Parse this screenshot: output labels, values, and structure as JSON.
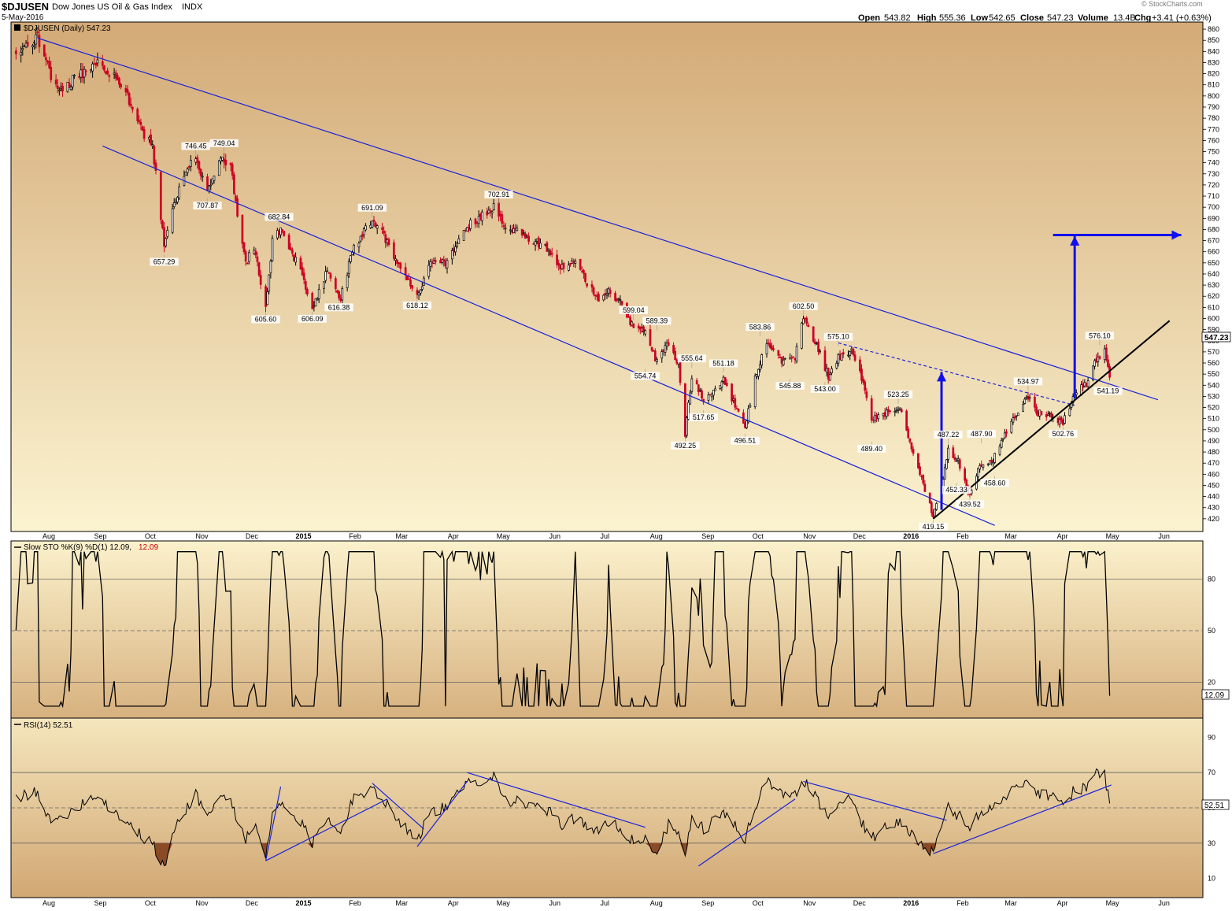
{
  "header": {
    "symbol": "$DJUSEN",
    "name": "Dow Jones US Oil & Gas Index",
    "exchange": "INDX",
    "date": "5-May-2016",
    "open_label": "Open",
    "open": "543.82",
    "high_label": "High",
    "high": "555.36",
    "low_label": "Low",
    "low": "542.65",
    "close_label": "Close",
    "close": "547.23",
    "volume_label": "Volume",
    "volume": "13.4B",
    "chg_label": "Chg",
    "chg": "+3.41 (+0.63%)",
    "brand": "© StockCharts.com",
    "arrow": "▲"
  },
  "colors": {
    "bg_top": "#d3aa77",
    "bg_bottom": "#fbf3d0",
    "down": "#cc0022",
    "up": "#000000",
    "trend_blue": "#1a22d8",
    "arrow_blue": "#1010ee",
    "rsi_fill": "#8a4a26"
  },
  "months_x": [
    "Aug",
    "Sep",
    "Oct",
    "Nov",
    "Dec",
    "2015",
    "Feb",
    "Mar",
    "Apr",
    "May",
    "Jun",
    "Jul",
    "Aug",
    "Sep",
    "Oct",
    "Nov",
    "Dec",
    "2016",
    "Feb",
    "Mar",
    "Apr",
    "May",
    "Jun"
  ],
  "chart_data": [
    {
      "type": "candlestick",
      "title": "$DJUSEN (Daily) 547.23",
      "last_value": "547.23",
      "ylim": [
        410,
        865
      ],
      "yticks": [
        420,
        430,
        440,
        450,
        460,
        470,
        480,
        490,
        500,
        510,
        520,
        530,
        540,
        550,
        560,
        570,
        580,
        590,
        600,
        610,
        620,
        630,
        640,
        650,
        660,
        670,
        680,
        690,
        700,
        710,
        720,
        730,
        740,
        750,
        760,
        770,
        780,
        790,
        800,
        810,
        820,
        830,
        840,
        850,
        860
      ],
      "anchors": [
        [
          "2014-07-18",
          838
        ],
        [
          "2014-07-31",
          852
        ],
        [
          "2014-08-08",
          818
        ],
        [
          "2014-08-14",
          806
        ],
        [
          "2014-08-29",
          823
        ],
        [
          "2014-09-05",
          832
        ],
        [
          "2014-09-12",
          822
        ],
        [
          "2014-09-23",
          800
        ],
        [
          "2014-10-01",
          770
        ],
        [
          "2014-10-08",
          755
        ],
        [
          "2014-10-15",
          668
        ],
        [
          "2014-10-20",
          700
        ],
        [
          "2014-10-27",
          725
        ],
        [
          "2014-11-03",
          748
        ],
        [
          "2014-11-10",
          712
        ],
        [
          "2014-11-17",
          742
        ],
        [
          "2014-11-24",
          738
        ],
        [
          "2014-11-28",
          690
        ],
        [
          "2014-12-03",
          650
        ],
        [
          "2014-12-08",
          665
        ],
        [
          "2014-12-15",
          607
        ],
        [
          "2014-12-19",
          670
        ],
        [
          "2014-12-24",
          680
        ],
        [
          "2015-01-06",
          640
        ],
        [
          "2015-01-12",
          608
        ],
        [
          "2015-01-21",
          645
        ],
        [
          "2015-01-29",
          618
        ],
        [
          "2015-02-06",
          665
        ],
        [
          "2015-02-17",
          688
        ],
        [
          "2015-02-26",
          670
        ],
        [
          "2015-03-06",
          645
        ],
        [
          "2015-03-16",
          620
        ],
        [
          "2015-03-24",
          648
        ],
        [
          "2015-04-03",
          650
        ],
        [
          "2015-04-15",
          682
        ],
        [
          "2015-04-24",
          693
        ],
        [
          "2015-05-01",
          700
        ],
        [
          "2015-05-08",
          682
        ],
        [
          "2015-05-20",
          675
        ],
        [
          "2015-06-03",
          662
        ],
        [
          "2015-06-10",
          645
        ],
        [
          "2015-06-19",
          650
        ],
        [
          "2015-07-02",
          618
        ],
        [
          "2015-07-10",
          625
        ],
        [
          "2015-07-17",
          612
        ],
        [
          "2015-07-24",
          592
        ],
        [
          "2015-07-31",
          590
        ],
        [
          "2015-08-07",
          560
        ],
        [
          "2015-08-14",
          578
        ],
        [
          "2015-08-20",
          560
        ],
        [
          "2015-08-24",
          495
        ],
        [
          "2015-08-28",
          548
        ],
        [
          "2015-09-04",
          528
        ],
        [
          "2015-09-10",
          535
        ],
        [
          "2015-09-16",
          545
        ],
        [
          "2015-09-22",
          525
        ],
        [
          "2015-09-29",
          500
        ],
        [
          "2015-10-05",
          548
        ],
        [
          "2015-10-12",
          578
        ],
        [
          "2015-10-20",
          562
        ],
        [
          "2015-10-29",
          565
        ],
        [
          "2015-11-03",
          600
        ],
        [
          "2015-11-10",
          580
        ],
        [
          "2015-11-18",
          548
        ],
        [
          "2015-11-24",
          565
        ],
        [
          "2015-12-03",
          570
        ],
        [
          "2015-12-09",
          540
        ],
        [
          "2015-12-14",
          510
        ],
        [
          "2015-12-22",
          515
        ],
        [
          "2015-12-31",
          520
        ],
        [
          "2016-01-08",
          478
        ],
        [
          "2016-01-14",
          452
        ],
        [
          "2016-01-20",
          422
        ],
        [
          "2016-01-25",
          450
        ],
        [
          "2016-01-29",
          482
        ],
        [
          "2016-02-04",
          472
        ],
        [
          "2016-02-11",
          440
        ],
        [
          "2016-02-17",
          468
        ],
        [
          "2016-02-24",
          470
        ],
        [
          "2016-03-01",
          488
        ],
        [
          "2016-03-08",
          510
        ],
        [
          "2016-03-17",
          530
        ],
        [
          "2016-03-23",
          515
        ],
        [
          "2016-04-01",
          512
        ],
        [
          "2016-04-07",
          506
        ],
        [
          "2016-04-14",
          532
        ],
        [
          "2016-04-21",
          542
        ],
        [
          "2016-04-27",
          563
        ],
        [
          "2016-05-02",
          570
        ],
        [
          "2016-05-05",
          547.23
        ]
      ],
      "annotations": [
        {
          "date": "2014-10-15",
          "value": "657.29",
          "pos": "below"
        },
        {
          "date": "2014-11-03",
          "value": "746.45",
          "pos": "above"
        },
        {
          "date": "2014-11-10",
          "value": "707.87",
          "pos": "below"
        },
        {
          "date": "2014-11-20",
          "value": "749.04",
          "pos": "above"
        },
        {
          "date": "2014-12-15",
          "value": "605.60",
          "pos": "below"
        },
        {
          "date": "2014-12-23",
          "value": "682.84",
          "pos": "above"
        },
        {
          "date": "2015-01-12",
          "value": "606.09",
          "pos": "below"
        },
        {
          "date": "2015-01-28",
          "value": "616.38",
          "pos": "below"
        },
        {
          "date": "2015-02-17",
          "value": "691.09",
          "pos": "above"
        },
        {
          "date": "2015-03-16",
          "value": "618.12",
          "pos": "below"
        },
        {
          "date": "2015-05-04",
          "value": "702.91",
          "pos": "above"
        },
        {
          "date": "2015-07-24",
          "value": "599.04",
          "pos": "above"
        },
        {
          "date": "2015-07-31",
          "value": "554.74",
          "pos": "below"
        },
        {
          "date": "2015-08-07",
          "value": "589.39",
          "pos": "above"
        },
        {
          "date": "2015-08-24",
          "value": "492.25",
          "pos": "below"
        },
        {
          "date": "2015-08-28",
          "value": "555.64",
          "pos": "above"
        },
        {
          "date": "2015-09-04",
          "value": "517.65",
          "pos": "below"
        },
        {
          "date": "2015-09-16",
          "value": "551.18",
          "pos": "above"
        },
        {
          "date": "2015-09-29",
          "value": "496.51",
          "pos": "below"
        },
        {
          "date": "2015-10-08",
          "value": "583.86",
          "pos": "above"
        },
        {
          "date": "2015-10-26",
          "value": "545.88",
          "pos": "below"
        },
        {
          "date": "2015-11-03",
          "value": "602.50",
          "pos": "above"
        },
        {
          "date": "2015-11-16",
          "value": "543.00",
          "pos": "below"
        },
        {
          "date": "2015-11-24",
          "value": "575.10",
          "pos": "above"
        },
        {
          "date": "2015-12-14",
          "value": "489.40",
          "pos": "below"
        },
        {
          "date": "2015-12-30",
          "value": "523.25",
          "pos": "above"
        },
        {
          "date": "2016-01-20",
          "value": "419.15",
          "pos": "below"
        },
        {
          "date": "2016-01-29",
          "value": "487.22",
          "pos": "above"
        },
        {
          "date": "2016-02-03",
          "value": "452.33",
          "pos": "below"
        },
        {
          "date": "2016-02-11",
          "value": "439.52",
          "pos": "below"
        },
        {
          "date": "2016-02-18",
          "value": "487.90",
          "pos": "above"
        },
        {
          "date": "2016-02-26",
          "value": "458.60",
          "pos": "below"
        },
        {
          "date": "2016-03-17",
          "value": "534.97",
          "pos": "above"
        },
        {
          "date": "2016-04-07",
          "value": "502.76",
          "pos": "below"
        },
        {
          "date": "2016-04-29",
          "value": "576.10",
          "pos": "above"
        },
        {
          "date": "2016-05-04",
          "value": "541.19",
          "pos": "below"
        }
      ],
      "trendlines": [
        {
          "from": [
            "2014-07-31",
            852
          ],
          "to": [
            "2016-06-03",
            527
          ],
          "color": "blue"
        },
        {
          "from": [
            "2014-09-08",
            755
          ],
          "to": [
            "2016-02-26",
            414
          ],
          "color": "blue"
        },
        {
          "from": [
            "2015-11-24",
            578
          ],
          "to": [
            "2016-04-14",
            522
          ],
          "color": "blue",
          "dash": true
        },
        {
          "from": [
            "2016-01-20",
            420
          ],
          "to": [
            "2016-06-10",
            598
          ],
          "color": "black"
        },
        {
          "from": [
            "2016-01-25",
            428
          ],
          "to": [
            "2016-01-25",
            552
          ],
          "color": "arrow"
        },
        {
          "from": [
            "2016-04-14",
            528
          ],
          "to": [
            "2016-04-14",
            674
          ],
          "color": "arrow"
        },
        {
          "from": [
            "2016-04-01",
            675
          ],
          "to": [
            "2016-06-17",
            675
          ],
          "color": "arrow"
        }
      ]
    },
    {
      "type": "line",
      "title": "Slow STO %K(9) %D(1) 12.09,",
      "d_value": "12.09",
      "last_value": "12.09",
      "ylim": [
        0,
        100
      ],
      "yticks": [
        20,
        50,
        80
      ],
      "reference_lines": [
        20,
        50,
        80
      ]
    },
    {
      "type": "line",
      "title": "RSI(14) 52.51",
      "last_value": "52.51",
      "ylim": [
        0,
        100
      ],
      "yticks": [
        10,
        30,
        50,
        70,
        90
      ],
      "reference_lines": [
        30,
        50,
        70
      ],
      "anchors": [
        [
          "2014-07-18",
          55
        ],
        [
          "2014-07-31",
          60
        ],
        [
          "2014-08-08",
          40
        ],
        [
          "2014-08-14",
          45
        ],
        [
          "2014-08-29",
          54
        ],
        [
          "2014-09-05",
          58
        ],
        [
          "2014-09-12",
          50
        ],
        [
          "2014-09-23",
          42
        ],
        [
          "2014-10-01",
          34
        ],
        [
          "2014-10-08",
          30
        ],
        [
          "2014-10-15",
          15
        ],
        [
          "2014-10-20",
          35
        ],
        [
          "2014-10-27",
          48
        ],
        [
          "2014-11-03",
          58
        ],
        [
          "2014-11-10",
          45
        ],
        [
          "2014-11-17",
          56
        ],
        [
          "2014-11-24",
          55
        ],
        [
          "2014-11-28",
          42
        ],
        [
          "2014-12-03",
          33
        ],
        [
          "2014-12-08",
          40
        ],
        [
          "2014-12-15",
          22
        ],
        [
          "2014-12-19",
          45
        ],
        [
          "2014-12-24",
          52
        ],
        [
          "2015-01-06",
          40
        ],
        [
          "2015-01-12",
          30
        ],
        [
          "2015-01-21",
          45
        ],
        [
          "2015-01-29",
          38
        ],
        [
          "2015-02-06",
          55
        ],
        [
          "2015-02-17",
          62
        ],
        [
          "2015-02-26",
          52
        ],
        [
          "2015-03-06",
          42
        ],
        [
          "2015-03-16",
          32
        ],
        [
          "2015-03-24",
          48
        ],
        [
          "2015-04-03",
          50
        ],
        [
          "2015-04-15",
          64
        ],
        [
          "2015-04-24",
          66
        ],
        [
          "2015-05-01",
          68
        ],
        [
          "2015-05-08",
          55
        ],
        [
          "2015-05-20",
          52
        ],
        [
          "2015-06-03",
          48
        ],
        [
          "2015-06-10",
          40
        ],
        [
          "2015-06-19",
          45
        ],
        [
          "2015-07-02",
          36
        ],
        [
          "2015-07-10",
          42
        ],
        [
          "2015-07-17",
          38
        ],
        [
          "2015-07-24",
          30
        ],
        [
          "2015-07-31",
          32
        ],
        [
          "2015-08-07",
          25
        ],
        [
          "2015-08-14",
          40
        ],
        [
          "2015-08-20",
          35
        ],
        [
          "2015-08-24",
          20
        ],
        [
          "2015-08-28",
          45
        ],
        [
          "2015-09-04",
          38
        ],
        [
          "2015-09-10",
          42
        ],
        [
          "2015-09-16",
          48
        ],
        [
          "2015-09-22",
          40
        ],
        [
          "2015-09-29",
          33
        ],
        [
          "2015-10-05",
          50
        ],
        [
          "2015-10-12",
          66
        ],
        [
          "2015-10-20",
          58
        ],
        [
          "2015-10-29",
          58
        ],
        [
          "2015-11-03",
          66
        ],
        [
          "2015-11-10",
          58
        ],
        [
          "2015-11-18",
          44
        ],
        [
          "2015-11-24",
          52
        ],
        [
          "2015-12-03",
          55
        ],
        [
          "2015-12-09",
          40
        ],
        [
          "2015-12-14",
          32
        ],
        [
          "2015-12-22",
          38
        ],
        [
          "2015-12-31",
          42
        ],
        [
          "2016-01-08",
          35
        ],
        [
          "2016-01-14",
          28
        ],
        [
          "2016-01-20",
          24
        ],
        [
          "2016-01-25",
          38
        ],
        [
          "2016-01-29",
          50
        ],
        [
          "2016-02-04",
          46
        ],
        [
          "2016-02-11",
          38
        ],
        [
          "2016-02-17",
          48
        ],
        [
          "2016-02-24",
          50
        ],
        [
          "2016-03-01",
          54
        ],
        [
          "2016-03-08",
          60
        ],
        [
          "2016-03-17",
          67
        ],
        [
          "2016-03-23",
          58
        ],
        [
          "2016-04-01",
          58
        ],
        [
          "2016-04-07",
          52
        ],
        [
          "2016-04-14",
          60
        ],
        [
          "2016-04-21",
          62
        ],
        [
          "2016-04-27",
          70
        ],
        [
          "2016-05-02",
          68
        ],
        [
          "2016-05-05",
          52.51
        ]
      ],
      "trendlines": [
        {
          "from": [
            "2014-12-15",
            20
          ],
          "to": [
            "2014-12-24",
            62
          ]
        },
        {
          "from": [
            "2014-12-15",
            20
          ],
          "to": [
            "2015-02-26",
            55
          ]
        },
        {
          "from": [
            "2015-02-17",
            64
          ],
          "to": [
            "2015-03-20",
            38
          ]
        },
        {
          "from": [
            "2015-03-16",
            28
          ],
          "to": [
            "2015-04-15",
            65
          ]
        },
        {
          "from": [
            "2015-04-15",
            70
          ],
          "to": [
            "2015-07-31",
            39
          ]
        },
        {
          "from": [
            "2015-09-01",
            17
          ],
          "to": [
            "2015-10-29",
            55
          ]
        },
        {
          "from": [
            "2015-11-03",
            65
          ],
          "to": [
            "2016-01-28",
            43
          ]
        },
        {
          "from": [
            "2016-01-20",
            24
          ],
          "to": [
            "2016-05-06",
            63
          ]
        }
      ]
    }
  ]
}
